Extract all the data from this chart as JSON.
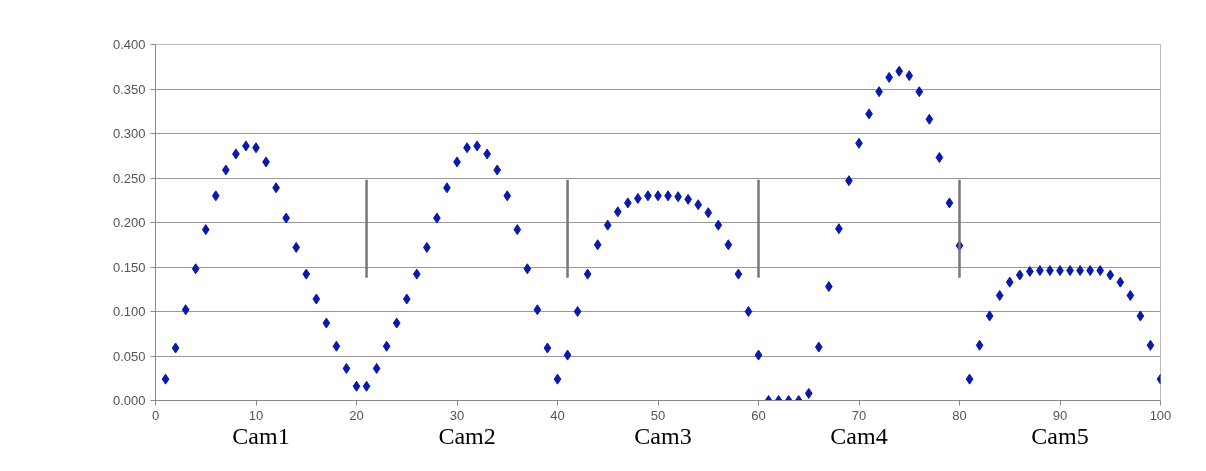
{
  "chart_data": {
    "type": "scatter",
    "marker": "diamond",
    "grid": "y",
    "x": [
      1,
      2,
      3,
      4,
      5,
      6,
      7,
      8,
      9,
      10,
      11,
      12,
      13,
      14,
      15,
      16,
      17,
      18,
      19,
      20,
      21,
      22,
      23,
      24,
      25,
      26,
      27,
      28,
      29,
      30,
      31,
      32,
      33,
      34,
      35,
      36,
      37,
      38,
      39,
      40,
      41,
      42,
      43,
      44,
      45,
      46,
      47,
      48,
      49,
      50,
      51,
      52,
      53,
      54,
      55,
      56,
      57,
      58,
      59,
      60,
      61,
      62,
      63,
      64,
      65,
      66,
      67,
      68,
      69,
      70,
      71,
      72,
      73,
      74,
      75,
      76,
      77,
      78,
      79,
      80,
      81,
      82,
      83,
      84,
      85,
      86,
      87,
      88,
      89,
      90,
      91,
      92,
      93,
      94,
      95,
      96,
      97,
      98,
      99,
      100
    ],
    "series": [
      {
        "color": "#0a1aa8",
        "values": [
          0.024,
          0.059,
          0.102,
          0.148,
          0.192,
          0.23,
          0.259,
          0.277,
          0.286,
          0.284,
          0.268,
          0.239,
          0.205,
          0.172,
          0.142,
          0.114,
          0.087,
          0.061,
          0.036,
          0.016,
          0.016,
          0.036,
          0.061,
          0.087,
          0.114,
          0.142,
          0.172,
          0.205,
          0.239,
          0.268,
          0.284,
          0.286,
          0.277,
          0.259,
          0.23,
          0.192,
          0.148,
          0.102,
          0.059,
          0.024,
          0.051,
          0.1,
          0.142,
          0.175,
          0.197,
          0.212,
          0.222,
          0.227,
          0.23,
          0.23,
          0.23,
          0.229,
          0.226,
          0.22,
          0.211,
          0.197,
          0.175,
          0.142,
          0.1,
          0.051,
          0.0,
          0.0,
          0.0,
          0.0,
          0.008,
          0.06,
          0.128,
          0.193,
          0.247,
          0.289,
          0.322,
          0.347,
          0.363,
          0.37,
          0.365,
          0.347,
          0.316,
          0.273,
          0.222,
          0.174,
          0.024,
          0.062,
          0.095,
          0.118,
          0.133,
          0.141,
          0.145,
          0.146,
          0.146,
          0.146,
          0.146,
          0.146,
          0.146,
          0.146,
          0.141,
          0.133,
          0.118,
          0.095,
          0.062,
          0.024
        ]
      }
    ],
    "xlim": [
      0,
      100
    ],
    "xticks": [
      0,
      10,
      20,
      30,
      40,
      50,
      60,
      70,
      80,
      90,
      100
    ],
    "ylim": [
      0,
      0.4
    ],
    "yticks": [
      {
        "value": 0,
        "label": "0.000"
      },
      {
        "value": 0.05,
        "label": "0.050"
      },
      {
        "value": 0.1,
        "label": "0.100"
      },
      {
        "value": 0.15,
        "label": "0.150"
      },
      {
        "value": 0.2,
        "label": "0.200"
      },
      {
        "value": 0.25,
        "label": "0.250"
      },
      {
        "value": 0.3,
        "label": "0.300"
      },
      {
        "value": 0.35,
        "label": "0.350"
      },
      {
        "value": 0.4,
        "label": "0.400"
      }
    ],
    "ref_lines": [
      {
        "axis": "x",
        "value": 21,
        "color": "#777777"
      },
      {
        "axis": "x",
        "value": 41,
        "color": "#777777"
      },
      {
        "axis": "x",
        "value": 60,
        "color": "#777777"
      },
      {
        "axis": "x",
        "value": 80,
        "color": "#777777"
      }
    ],
    "annotations": [
      "Cam1",
      "Cam2",
      "Cam3",
      "Cam4",
      "Cam5"
    ]
  }
}
